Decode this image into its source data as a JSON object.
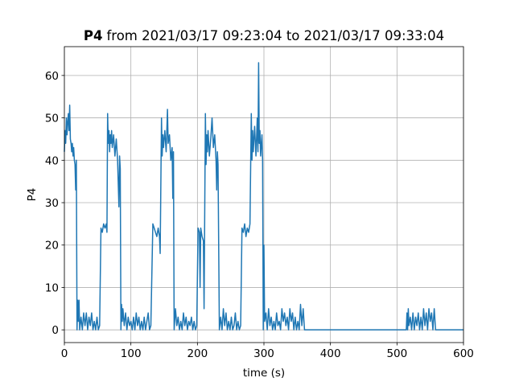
{
  "chart_data": {
    "type": "line",
    "title_bold": "P4",
    "title": "from 2021/03/17 09:23:04 to 2021/03/17 09:33:04",
    "x_label": "time (s)",
    "y_label": "P4",
    "color": "#1f77b4",
    "grid": true,
    "xlim": [
      0,
      600
    ],
    "ylim": [
      -3.0,
      66.8
    ],
    "xticks": [
      0,
      100,
      200,
      300,
      400,
      500,
      600
    ],
    "yticks": [
      0,
      10,
      20,
      30,
      40,
      50,
      60
    ],
    "x": [
      0,
      1,
      2,
      3,
      4,
      5,
      6,
      7,
      8,
      9,
      10,
      11,
      12,
      13,
      14,
      15,
      16,
      17,
      18,
      19,
      20,
      21,
      22,
      23,
      25,
      27,
      29,
      31,
      33,
      35,
      37,
      39,
      41,
      43,
      45,
      47,
      49,
      51,
      53,
      55,
      57,
      59,
      61,
      63,
      64,
      65,
      66,
      67,
      68,
      69,
      70,
      71,
      72,
      74,
      76,
      78,
      80,
      82,
      83,
      84,
      85,
      86,
      87,
      88,
      90,
      92,
      94,
      96,
      98,
      100,
      102,
      104,
      106,
      108,
      110,
      112,
      114,
      116,
      118,
      120,
      122,
      124,
      126,
      128,
      130,
      133,
      135,
      137,
      139,
      141,
      143,
      144,
      146,
      147,
      148,
      149,
      151,
      153,
      155,
      156,
      158,
      160,
      162,
      163,
      164,
      165,
      167,
      169,
      171,
      173,
      175,
      177,
      179,
      181,
      183,
      185,
      187,
      189,
      191,
      193,
      195,
      197,
      199,
      201,
      203,
      204,
      205,
      207,
      209,
      210,
      212,
      213,
      214,
      215,
      216,
      218,
      220,
      222,
      224,
      226,
      228,
      229,
      230,
      231,
      233,
      235,
      237,
      239,
      241,
      243,
      245,
      247,
      249,
      251,
      253,
      255,
      257,
      259,
      261,
      263,
      265,
      267,
      269,
      271,
      273,
      275,
      277,
      279,
      281,
      282,
      283,
      284,
      286,
      288,
      290,
      291,
      292,
      293,
      294,
      295,
      297,
      298,
      299,
      300,
      301,
      303,
      305,
      307,
      309,
      311,
      313,
      315,
      317,
      319,
      321,
      323,
      325,
      327,
      329,
      331,
      333,
      335,
      337,
      339,
      341,
      343,
      345,
      347,
      349,
      351,
      353,
      355,
      357,
      359,
      361,
      400,
      450,
      500,
      514,
      515,
      516,
      517,
      518,
      520,
      522,
      524,
      526,
      528,
      530,
      532,
      534,
      536,
      538,
      540,
      542,
      544,
      546,
      548,
      550,
      552,
      554,
      556,
      558,
      560,
      600
    ],
    "values": [
      42,
      47,
      44,
      50,
      46,
      49,
      51,
      47,
      53,
      45,
      44,
      42,
      44,
      41,
      43,
      40,
      39,
      33,
      40,
      0,
      7,
      2,
      7,
      0,
      3,
      0,
      4,
      1,
      4,
      0,
      3,
      1,
      4,
      0,
      2,
      0,
      3,
      0,
      1,
      24,
      23,
      25,
      24,
      25,
      23,
      51,
      44,
      47,
      42,
      46,
      44,
      47,
      43,
      46,
      41,
      45,
      40,
      29,
      41,
      38,
      0,
      6,
      2,
      5,
      1,
      4,
      0,
      3,
      1,
      2,
      0,
      3,
      0,
      4,
      1,
      3,
      0,
      2,
      0,
      3,
      0,
      2,
      4,
      0,
      1,
      25,
      24,
      23,
      22,
      24,
      22,
      18,
      50,
      41,
      46,
      43,
      47,
      42,
      52,
      44,
      46,
      40,
      43,
      31,
      42,
      0,
      5,
      1,
      3,
      0,
      2,
      0,
      4,
      1,
      3,
      0,
      2,
      1,
      3,
      0,
      2,
      0,
      1,
      24,
      23,
      10,
      24,
      22,
      21,
      5,
      51,
      39,
      46,
      42,
      47,
      41,
      45,
      50,
      43,
      46,
      40,
      33,
      42,
      39,
      0,
      3,
      0,
      5,
      1,
      4,
      0,
      2,
      0,
      3,
      0,
      1,
      4,
      0,
      2,
      0,
      1,
      24,
      23,
      25,
      22,
      24,
      23,
      25,
      51,
      40,
      47,
      42,
      48,
      41,
      50,
      42,
      63,
      44,
      47,
      41,
      46,
      40,
      0,
      20,
      2,
      4,
      0,
      5,
      1,
      3,
      0,
      2,
      0,
      4,
      1,
      2,
      0,
      5,
      2,
      4,
      1,
      3,
      0,
      5,
      2,
      4,
      0,
      3,
      0,
      2,
      0,
      6,
      1,
      5,
      0,
      0,
      0,
      0,
      0,
      4,
      0,
      5,
      1,
      3,
      0,
      4,
      0,
      3,
      1,
      4,
      0,
      3,
      0,
      5,
      1,
      4,
      0,
      5,
      2,
      4,
      0,
      5,
      0,
      0,
      0
    ]
  }
}
